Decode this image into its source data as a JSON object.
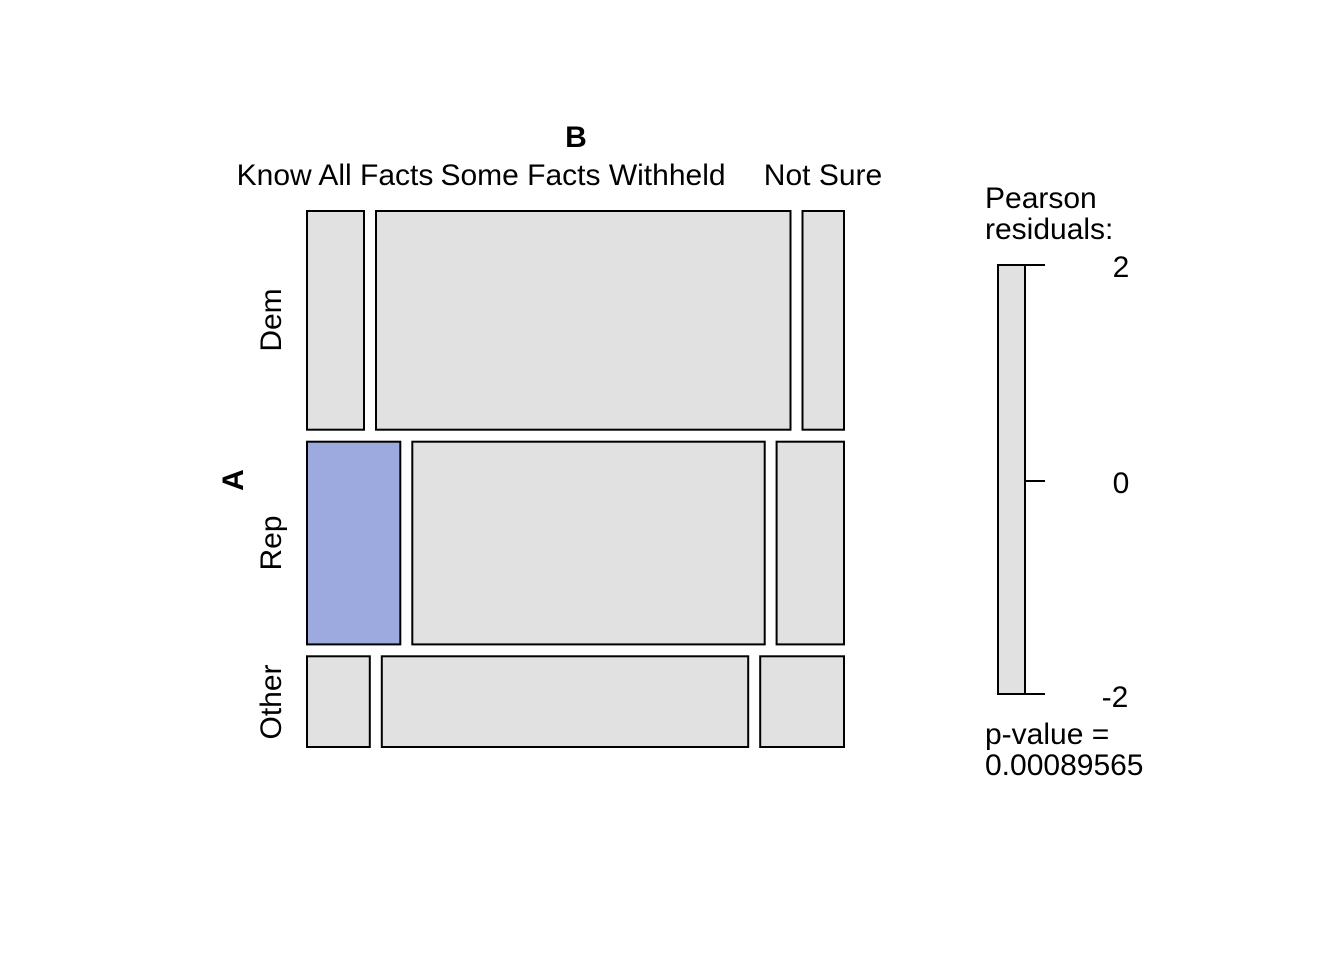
{
  "chart_data": {
    "type": "mosaic",
    "row_variable": "A",
    "column_variable": "B",
    "row_levels": [
      "Dem",
      "Rep",
      "Other"
    ],
    "column_levels": [
      "Know All Facts",
      "Some Facts Withheld",
      "Not Sure"
    ],
    "row_proportions": [
      0.41,
      0.38,
      0.17
    ],
    "conditional_column_proportions": [
      [
        0.11,
        0.8,
        0.08
      ],
      [
        0.18,
        0.68,
        0.13
      ],
      [
        0.12,
        0.7,
        0.16
      ]
    ],
    "pearson_residual_level": [
      [
        0,
        0,
        0
      ],
      [
        2,
        0,
        0
      ],
      [
        0,
        0,
        0
      ]
    ],
    "legend": {
      "title_lines": [
        "Pearson",
        "residuals:"
      ],
      "ticks": [
        2,
        0,
        -2
      ],
      "tick_labels": [
        "2",
        "0",
        "-2"
      ],
      "range": [
        -2,
        2
      ],
      "pvalue_label": "p-value =",
      "pvalue": "0.00089565"
    },
    "colors": {
      "neutral": "#e1e1e1",
      "positive_residual": "#9daae0",
      "border": "#000000"
    }
  }
}
